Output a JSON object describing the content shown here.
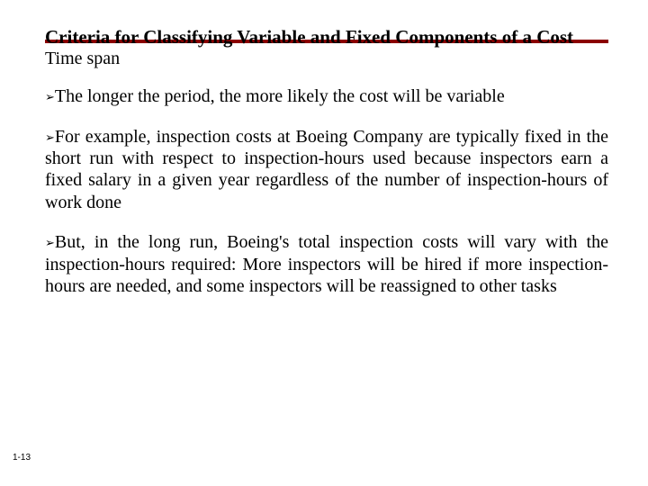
{
  "title": "Criteria for Classifying Variable and Fixed Components of a Cost",
  "subtitle": "Time span",
  "bullets": [
    "The longer the period, the more likely the cost will be variable",
    "For example, inspection costs at Boeing Company are typically fixed in the short run with respect to inspection-hours used because inspectors earn a fixed salary in a given year regardless of the number of inspection-hours of work done",
    "But, in the long run, Boeing's total inspection costs will vary with the inspection-hours required: More inspectors will be hired if more inspection-hours are needed, and some inspectors will be reassigned to other tasks"
  ],
  "bullet_marker": "➢",
  "page_number": "1-13",
  "colors": {
    "background": "#ffffff",
    "text": "#000000",
    "rule": "#8b0000"
  },
  "typography": {
    "title_fontsize": 21,
    "body_fontsize": 20,
    "pageno_fontsize": 10,
    "body_font": "Times New Roman",
    "pageno_font": "Arial"
  }
}
